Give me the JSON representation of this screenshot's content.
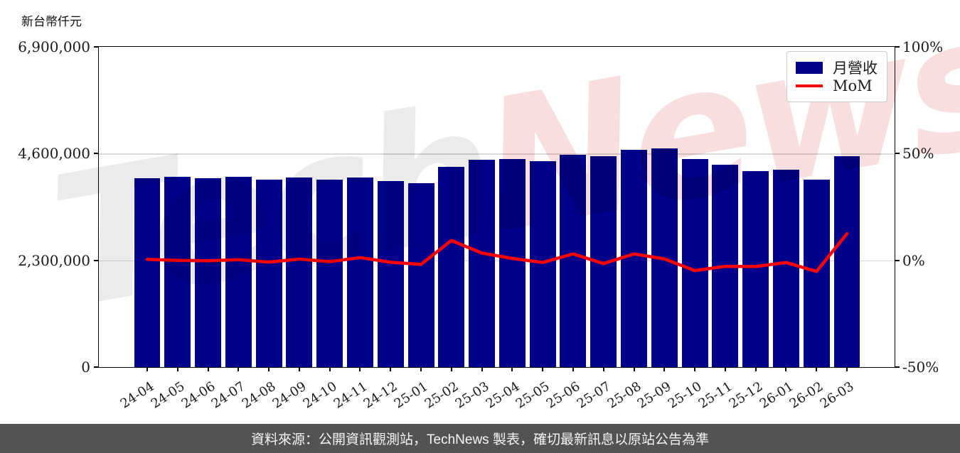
{
  "ui": {
    "watermark": {
      "part1": "Tech",
      "part2": "News"
    }
  },
  "footer": {
    "text": "資料來源：公開資訊觀測站，TechNews 製表，確切最新訊息以原站公告為準"
  },
  "chart_data": {
    "type": "bar+line",
    "categories": [
      "24-04",
      "24-05",
      "24-06",
      "24-07",
      "24-08",
      "24-09",
      "24-10",
      "24-11",
      "24-12",
      "25-01",
      "25-02",
      "25-03",
      "25-04",
      "25-05",
      "25-06",
      "25-07",
      "25-08",
      "25-09",
      "25-10",
      "25-11",
      "25-12",
      "26-01",
      "26-02",
      "26-03"
    ],
    "series": [
      {
        "name": "月營收",
        "type": "bar",
        "axis": "left",
        "color": "#00008B",
        "values": [
          4070000,
          4100000,
          4075000,
          4105000,
          4040000,
          4080000,
          4045000,
          4085000,
          4010000,
          3960000,
          4320000,
          4465000,
          4485000,
          4440000,
          4575000,
          4545000,
          4680000,
          4710000,
          4485000,
          4360000,
          4225000,
          4255000,
          4040000,
          4545000
        ]
      },
      {
        "name": "MoM",
        "type": "line",
        "axis": "right",
        "color": "#FF0000",
        "values": [
          0.5,
          0.0,
          -0.2,
          0.3,
          -0.8,
          0.6,
          -0.6,
          1.3,
          -0.9,
          -1.9,
          9.3,
          3.4,
          0.9,
          -1.0,
          3.0,
          -1.5,
          3.0,
          0.7,
          -4.8,
          -2.8,
          -2.9,
          -1.0,
          -5.2,
          12.5
        ]
      }
    ],
    "left_axis": {
      "label": "新台幣仟元",
      "tick_labels": [
        "6,900,000",
        "4,600,000",
        "2,300,000",
        "0"
      ],
      "min": 0,
      "max": 6900000
    },
    "right_axis": {
      "tick_labels": [
        "100%",
        "50%",
        "0%",
        "-50%"
      ],
      "min": -50,
      "max": 100
    },
    "grid": "horizontal-at-ticks",
    "legend_position": "top-right",
    "title": ""
  }
}
